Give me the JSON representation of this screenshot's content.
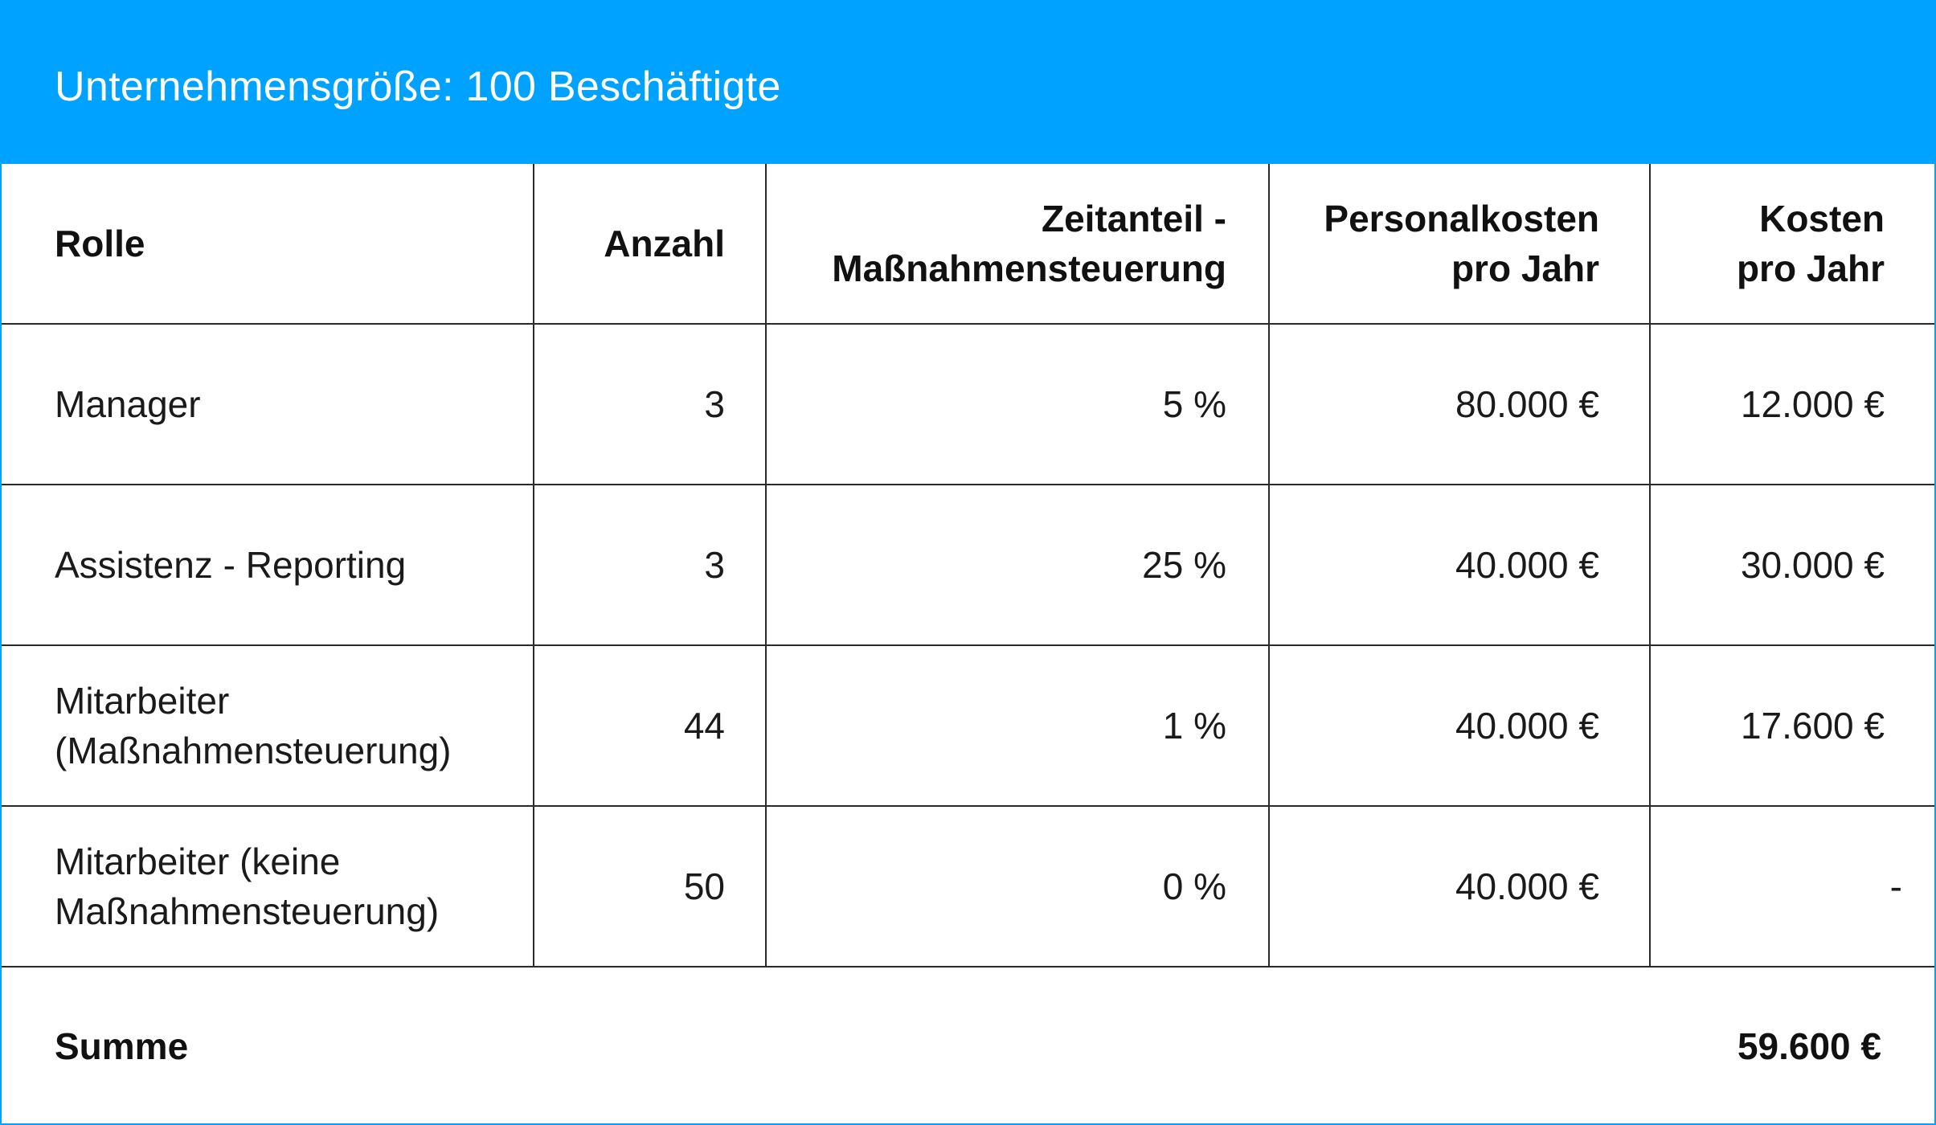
{
  "title": "Unternehmensgröße: 100 Beschäftigte",
  "colors": {
    "header_background": "#00a2ff",
    "title_text": "#ffffff",
    "grid_lines": "#2a2a2a",
    "table_background": "#ffffff"
  },
  "table": {
    "columns": [
      {
        "lines": [
          "Rolle"
        ]
      },
      {
        "lines": [
          "Anzahl"
        ]
      },
      {
        "lines": [
          "Zeitanteil -",
          "Maßnahmensteuerung"
        ]
      },
      {
        "lines": [
          "Personalkosten",
          "pro Jahr"
        ]
      },
      {
        "lines": [
          "Kosten",
          "pro Jahr"
        ]
      }
    ],
    "rows": [
      {
        "rolle": [
          "Manager"
        ],
        "anzahl": "3",
        "zeitanteil": "5 %",
        "personalkosten": "80.000 €",
        "kosten": "12.000 €"
      },
      {
        "rolle": [
          "Assistenz - Reporting"
        ],
        "anzahl": "3",
        "zeitanteil": "25 %",
        "personalkosten": "40.000 €",
        "kosten": "30.000 €"
      },
      {
        "rolle": [
          "Mitarbeiter",
          "(Maßnahmensteuerung)"
        ],
        "anzahl": "44",
        "zeitanteil": "1 %",
        "personalkosten": "40.000 €",
        "kosten": "17.600 €"
      },
      {
        "rolle": [
          "Mitarbeiter (keine",
          "Maßnahmensteuerung)"
        ],
        "anzahl": "50",
        "zeitanteil": "0 %",
        "personalkosten": "40.000 €",
        "kosten": "-"
      }
    ],
    "summary": {
      "label": "Summe",
      "value": "59.600 €"
    }
  }
}
